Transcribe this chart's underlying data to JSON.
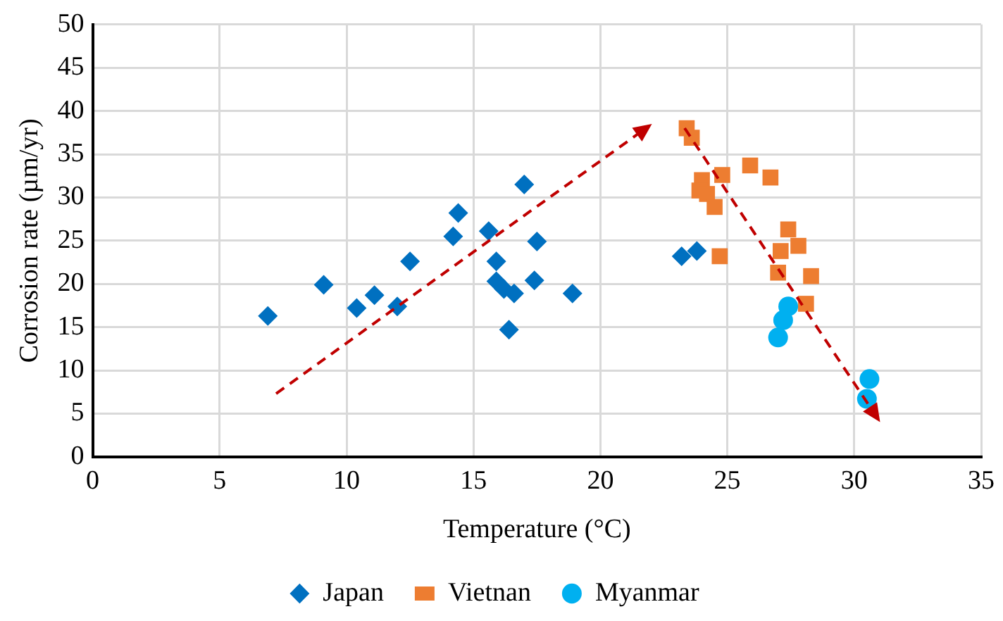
{
  "chart_data": {
    "type": "scatter",
    "xlabel": "Temperature (°C)",
    "ylabel": "Corrosion rate (µm/yr)",
    "xlim": [
      0,
      35
    ],
    "xticks": [
      0,
      5,
      10,
      15,
      20,
      25,
      30,
      35
    ],
    "ylim": [
      0,
      50
    ],
    "yticks": [
      0,
      5,
      10,
      15,
      20,
      25,
      30,
      35,
      40,
      45,
      50
    ],
    "grid": true,
    "legend": "bottom",
    "series": [
      {
        "name": "Japan",
        "color": "#0070c0",
        "marker": "diamond",
        "x": [
          6.9,
          9.1,
          10.4,
          11.1,
          12.0,
          12.5,
          14.2,
          14.4,
          15.6,
          15.9,
          15.9,
          16.2,
          16.6,
          16.4,
          17.0,
          17.5,
          17.4,
          18.9,
          23.2,
          23.8
        ],
        "values": [
          16.3,
          19.9,
          17.2,
          18.7,
          17.4,
          22.6,
          25.5,
          28.2,
          26.1,
          22.6,
          20.3,
          19.4,
          18.9,
          14.7,
          31.5,
          24.9,
          20.4,
          18.9,
          23.2,
          23.8
        ]
      },
      {
        "name": "Vietnan",
        "color": "#ed7d31",
        "marker": "square",
        "x": [
          23.4,
          23.6,
          24.0,
          23.9,
          24.2,
          24.5,
          24.8,
          24.7,
          25.9,
          26.7,
          27.4,
          27.8,
          27.1,
          27.0,
          28.3,
          28.1
        ],
        "values": [
          38.0,
          36.9,
          32.0,
          30.8,
          30.4,
          28.9,
          32.6,
          23.2,
          33.7,
          32.3,
          26.3,
          24.4,
          23.8,
          21.3,
          20.9,
          17.7
        ]
      },
      {
        "name": "Myanmar",
        "color": "#00b0f0",
        "marker": "circle",
        "x": [
          27.4,
          27.2,
          27.0,
          30.6,
          30.5
        ],
        "values": [
          17.4,
          15.8,
          13.8,
          9.0,
          6.7
        ]
      }
    ]
  }
}
